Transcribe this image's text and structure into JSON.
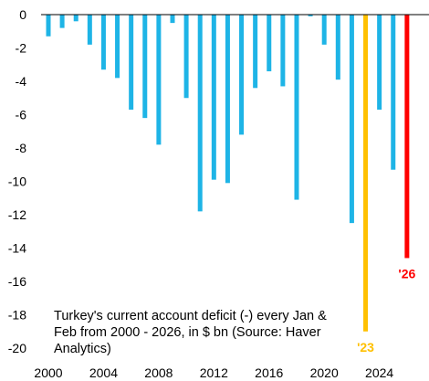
{
  "chart_data": {
    "type": "bar",
    "categories": [
      2000,
      2001,
      2002,
      2003,
      2004,
      2005,
      2006,
      2007,
      2008,
      2009,
      2010,
      2011,
      2012,
      2013,
      2014,
      2015,
      2016,
      2017,
      2018,
      2019,
      2020,
      2021,
      2022,
      2023,
      2024,
      2025,
      2026
    ],
    "values": [
      -1.3,
      -0.8,
      -0.4,
      -1.8,
      -3.3,
      -3.8,
      -5.7,
      -6.2,
      -7.8,
      -0.5,
      -5.0,
      -11.8,
      -9.9,
      -10.1,
      -7.2,
      -4.4,
      -3.4,
      -4.3,
      -11.1,
      -0.1,
      -1.8,
      -3.9,
      -12.5,
      -19.0,
      -5.7,
      -9.3,
      -14.6
    ],
    "ylim": [
      -20,
      0
    ],
    "yticks": [
      0,
      -2,
      -4,
      -6,
      -8,
      -10,
      -12,
      -14,
      -16,
      -18,
      -20
    ],
    "xticks": [
      2000,
      2004,
      2008,
      2012,
      2016,
      2020,
      2024
    ],
    "annotation_text": "Turkey's current account deficit (-) every Jan & Feb from 2000 - 2026, in $ bn (Source: Haver Analytics)",
    "highlights": [
      {
        "category": 2023,
        "label": "'23",
        "color": "#FFC000"
      },
      {
        "category": 2026,
        "label": "'26",
        "color": "#FF0000"
      }
    ],
    "colors": {
      "bar": "#1EB4E6",
      "axis": "#000000"
    },
    "grid": false,
    "legend": "none"
  }
}
